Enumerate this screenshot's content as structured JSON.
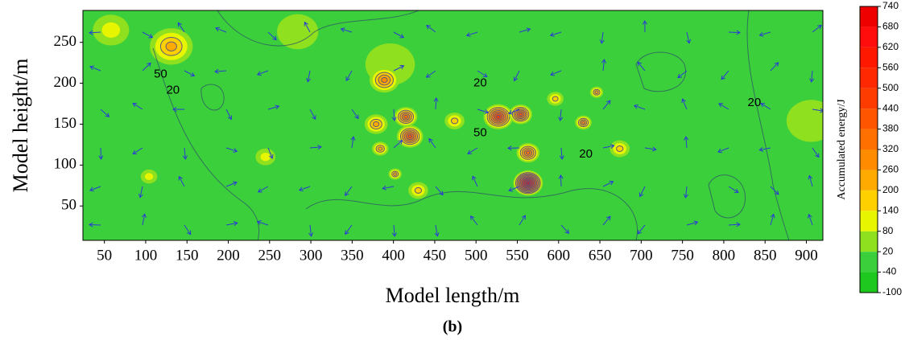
{
  "chart_data": {
    "type": "contour",
    "xlabel": "Model length/m",
    "ylabel": "Model height/m",
    "caption": "(b)",
    "colorbar_label": "Accumulated energy/J",
    "xlim": [
      24,
      920
    ],
    "ylim": [
      8,
      289
    ],
    "xticks": [
      50,
      100,
      150,
      200,
      250,
      300,
      350,
      400,
      450,
      500,
      550,
      600,
      650,
      700,
      750,
      800,
      850,
      900
    ],
    "yticks": [
      50,
      100,
      150,
      200,
      250
    ],
    "levels": [
      -100,
      -40,
      20,
      80,
      140,
      200,
      260,
      320,
      380,
      440,
      500,
      560,
      620,
      680,
      740
    ],
    "colors": [
      "#1ec81e",
      "#3ccf3c",
      "#8fe01e",
      "#e8f500",
      "#ffd000",
      "#ffaa00",
      "#ff8c00",
      "#ff7000",
      "#ff5500",
      "#ff3c00",
      "#ff2800",
      "#ff1800",
      "#ff0c0c",
      "#ee0000"
    ],
    "hotspots": [
      {
        "x": 906,
        "y": 154,
        "r": 30,
        "value": 50
      },
      {
        "x": 284,
        "y": 263,
        "r": 25,
        "value": 50
      },
      {
        "x": 396,
        "y": 223,
        "r": 30,
        "value": 50
      },
      {
        "x": 58,
        "y": 265,
        "r": 22,
        "value": 80
      },
      {
        "x": 131,
        "y": 245,
        "r": 26,
        "value": 200
      },
      {
        "x": 389,
        "y": 204,
        "r": 18,
        "value": 260
      },
      {
        "x": 415,
        "y": 159,
        "r": 14,
        "value": 320
      },
      {
        "x": 379,
        "y": 150,
        "r": 14,
        "value": 200
      },
      {
        "x": 420,
        "y": 135,
        "r": 16,
        "value": 380
      },
      {
        "x": 527,
        "y": 159,
        "r": 18,
        "value": 440
      },
      {
        "x": 554,
        "y": 162,
        "r": 14,
        "value": 380
      },
      {
        "x": 563,
        "y": 115,
        "r": 14,
        "value": 320
      },
      {
        "x": 563,
        "y": 78,
        "r": 18,
        "value": 740
      },
      {
        "x": 630,
        "y": 152,
        "r": 10,
        "value": 260
      },
      {
        "x": 245,
        "y": 110,
        "r": 12,
        "value": 80
      },
      {
        "x": 104,
        "y": 86,
        "r": 10,
        "value": 80
      },
      {
        "x": 430,
        "y": 69,
        "r": 12,
        "value": 140
      },
      {
        "x": 596,
        "y": 181,
        "r": 10,
        "value": 140
      },
      {
        "x": 646,
        "y": 189,
        "r": 8,
        "value": 200
      },
      {
        "x": 474,
        "y": 154,
        "r": 12,
        "value": 140
      },
      {
        "x": 384,
        "y": 120,
        "r": 10,
        "value": 200
      },
      {
        "x": 402,
        "y": 89,
        "r": 8,
        "value": 200
      },
      {
        "x": 674,
        "y": 120,
        "r": 12,
        "value": 140
      }
    ],
    "contour_labels": [
      {
        "x": 118,
        "y": 211,
        "value": 50
      },
      {
        "x": 133,
        "y": 191,
        "value": 20
      },
      {
        "x": 505,
        "y": 200,
        "value": 20
      },
      {
        "x": 505,
        "y": 139,
        "value": 50
      },
      {
        "x": 633,
        "y": 113,
        "value": 20
      },
      {
        "x": 837,
        "y": 176,
        "value": 20
      }
    ]
  }
}
